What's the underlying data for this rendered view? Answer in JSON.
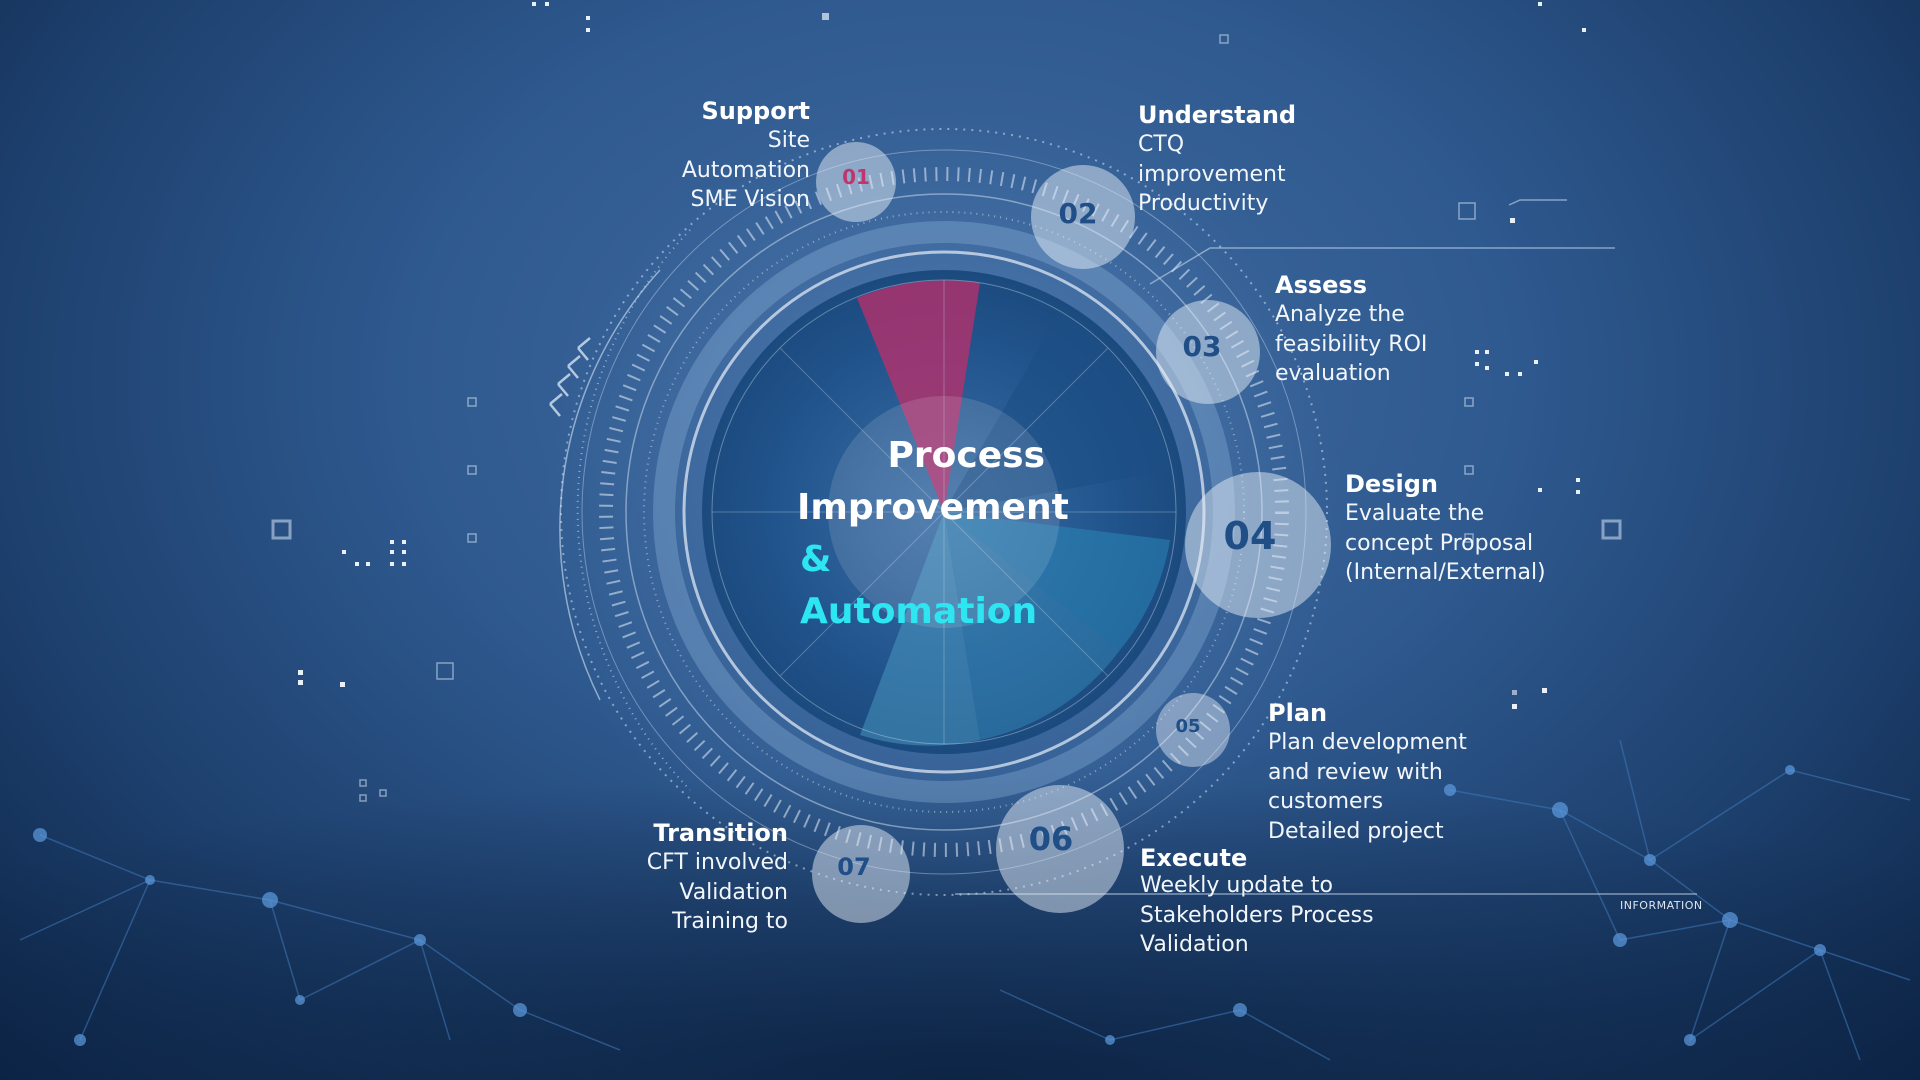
{
  "title": {
    "line1": "Process",
    "line2": "Improvement",
    "line3": "& Automation"
  },
  "steps": [
    {
      "number": "01",
      "heading": "Support",
      "lines": [
        "Site",
        "Automation",
        "SME Vision"
      ]
    },
    {
      "number": "02",
      "heading": "Understand",
      "lines": [
        "CTQ",
        "improvement",
        "Productivity"
      ]
    },
    {
      "number": "03",
      "heading": "Assess",
      "lines": [
        "Analyze the",
        "feasibility ROI",
        "evaluation"
      ]
    },
    {
      "number": "04",
      "heading": "Design",
      "lines": [
        "Evaluate the",
        "concept Proposal",
        "(Internal/External)"
      ]
    },
    {
      "number": "05",
      "heading": "Plan",
      "lines": [
        "Plan development",
        "and review with",
        "customers",
        "Detailed project"
      ]
    },
    {
      "number": "06",
      "heading": "Execute",
      "lines": [
        "Weekly update to",
        "Stakeholders Process",
        "Validation"
      ]
    },
    {
      "number": "07",
      "heading": "Transition",
      "lines": [
        "CFT involved",
        "Validation",
        "Training to"
      ]
    }
  ],
  "info_tag": "INFORMATION",
  "colors": {
    "accent_cyan": "#2ee6f2",
    "accent_magenta": "#c0356e",
    "badge_text": "#1f4f86"
  }
}
